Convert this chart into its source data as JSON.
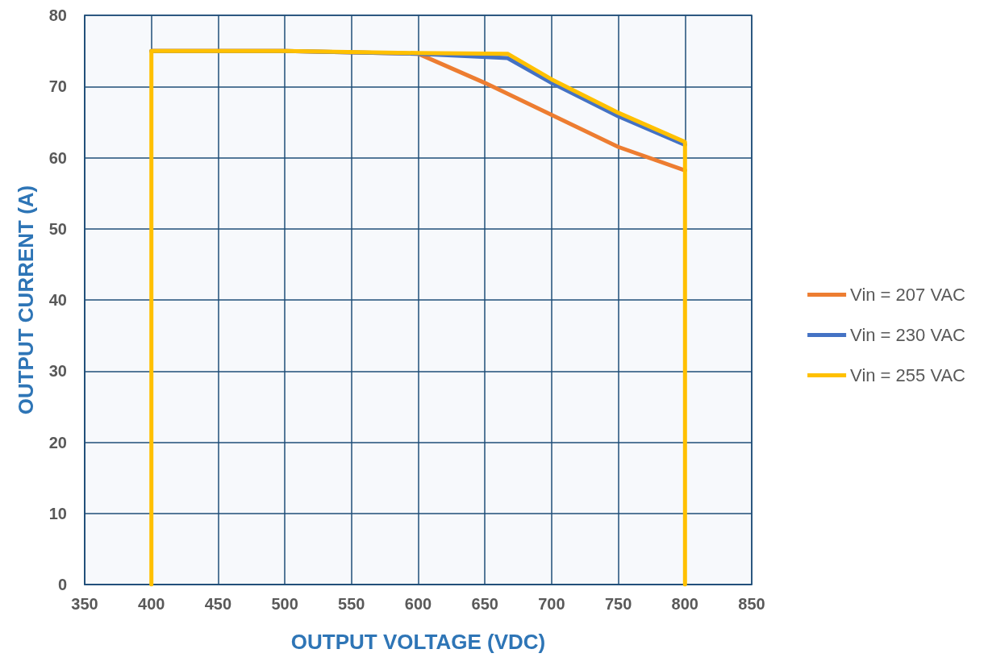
{
  "chart_data": {
    "type": "line",
    "xlabel": "OUTPUT VOLTAGE (VDC)",
    "ylabel": "OUTPUT CURRENT (A)",
    "xlim": [
      350,
      850
    ],
    "xticks": [
      350,
      400,
      450,
      500,
      550,
      600,
      650,
      700,
      750,
      800,
      850
    ],
    "ylim": [
      0,
      80
    ],
    "yticks": [
      0,
      10,
      20,
      30,
      40,
      50,
      60,
      70,
      80
    ],
    "grid": true,
    "legend": "right",
    "marker": "none",
    "line_style": "solid",
    "series": [
      {
        "name": "Vin = 207 VAC",
        "color": "#ed7d31",
        "x": [
          400,
          500,
          600,
          650,
          700,
          750,
          800
        ],
        "values": [
          75,
          75,
          74.6,
          70.5,
          66,
          61.5,
          58.2
        ]
      },
      {
        "name": "Vin = 230 VAC",
        "color": "#4472c4",
        "x": [
          400,
          500,
          600,
          667,
          700,
          750,
          800
        ],
        "values": [
          75,
          75,
          74.6,
          74,
          70.5,
          65.8,
          61.8
        ]
      },
      {
        "name": "Vin = 255 VAC",
        "color": "#ffc000",
        "x": [
          400,
          400,
          500,
          600,
          667,
          700,
          750,
          800,
          800
        ],
        "values": [
          0,
          75,
          75,
          74.7,
          74.6,
          71,
          66.3,
          62.2,
          0
        ]
      }
    ]
  }
}
